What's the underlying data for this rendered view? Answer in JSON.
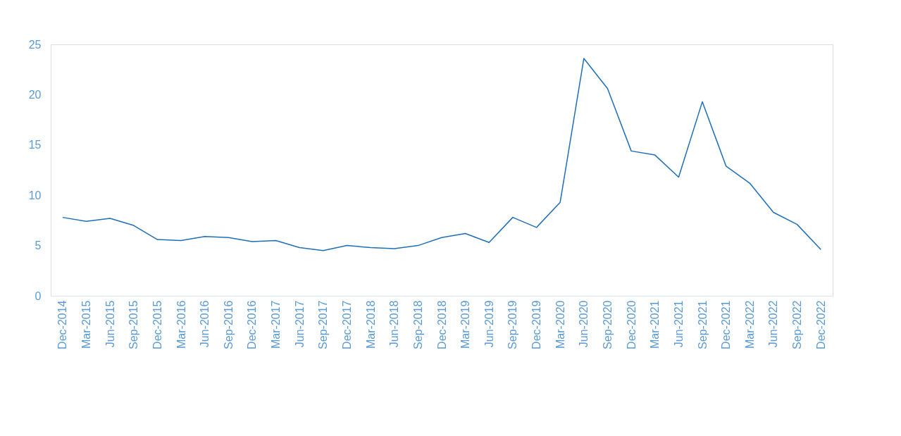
{
  "chart_data": {
    "type": "line",
    "categories": [
      "Dec-2014",
      "Mar-2015",
      "Jun-2015",
      "Sep-2015",
      "Dec-2015",
      "Mar-2016",
      "Jun-2016",
      "Sep-2016",
      "Dec-2016",
      "Mar-2017",
      "Jun-2017",
      "Sep-2017",
      "Dec-2017",
      "Mar-2018",
      "Jun-2018",
      "Sep-2018",
      "Dec-2018",
      "Mar-2019",
      "Jun-2019",
      "Sep-2019",
      "Dec-2019",
      "Mar-2020",
      "Jun-2020",
      "Sep-2020",
      "Dec-2020",
      "Mar-2021",
      "Jun-2021",
      "Sep-2021",
      "Dec-2021",
      "Mar-2022",
      "Jun-2022",
      "Sep-2022",
      "Dec-2022"
    ],
    "series": [
      {
        "color": "#1f6eb8",
        "values": [
          7.8,
          7.4,
          7.7,
          7.0,
          5.6,
          5.5,
          5.9,
          5.8,
          5.4,
          5.5,
          4.8,
          4.5,
          5.0,
          4.8,
          4.7,
          5.0,
          5.8,
          6.2,
          5.3,
          7.8,
          6.8,
          9.3,
          23.6,
          20.6,
          14.4,
          14.0,
          11.8,
          19.3,
          12.9,
          11.2,
          8.3,
          7.1,
          4.6
        ]
      }
    ],
    "ylim": [
      0,
      25
    ],
    "yticks": [
      0,
      5,
      10,
      15,
      20,
      25
    ],
    "grid": false,
    "legend": false,
    "marker": "none",
    "line_style": "solid"
  }
}
